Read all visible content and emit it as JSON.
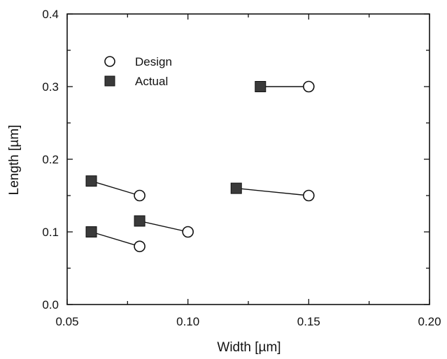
{
  "chart_data": {
    "type": "scatter",
    "xlabel": "Width  [µm]",
    "ylabel": "Length  [µm]",
    "xlim": [
      0.05,
      0.2
    ],
    "ylim": [
      0.0,
      0.4
    ],
    "xticks": [
      0.05,
      0.1,
      0.15,
      0.2
    ],
    "xtick_labels": [
      "0.05",
      "0.10",
      "0.15",
      "0.20"
    ],
    "yticks": [
      0.0,
      0.1,
      0.2,
      0.3,
      0.4
    ],
    "ytick_labels": [
      "0.0",
      "0.1",
      "0.2",
      "0.3",
      "0.4"
    ],
    "grid": false,
    "legend_position": "top-left",
    "series": [
      {
        "name": "Design",
        "marker": "open-circle",
        "points": [
          [
            0.08,
            0.15
          ],
          [
            0.08,
            0.08
          ],
          [
            0.1,
            0.1
          ],
          [
            0.15,
            0.3
          ],
          [
            0.15,
            0.15
          ]
        ]
      },
      {
        "name": "Actual",
        "marker": "filled-square",
        "points": [
          [
            0.06,
            0.17
          ],
          [
            0.06,
            0.1
          ],
          [
            0.08,
            0.115
          ],
          [
            0.13,
            0.3
          ],
          [
            0.12,
            0.16
          ]
        ]
      }
    ],
    "connections": [
      [
        0,
        0
      ],
      [
        1,
        1
      ],
      [
        2,
        2
      ],
      [
        3,
        3
      ],
      [
        4,
        4
      ]
    ]
  }
}
